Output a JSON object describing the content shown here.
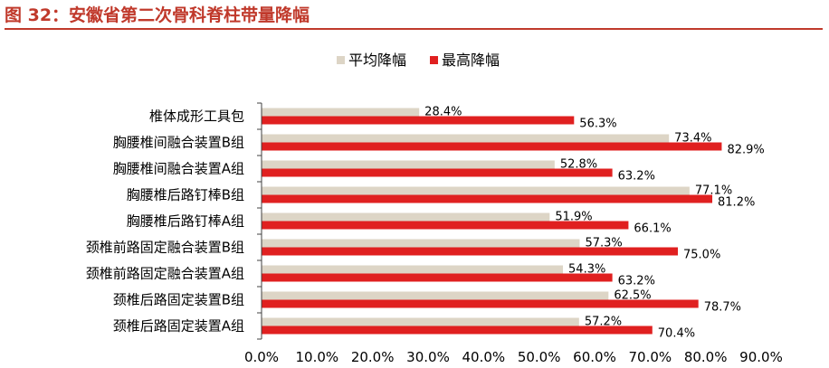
{
  "figure_title": "图 32：安徽省第二次骨科脊柱带量降幅",
  "colors": {
    "title": "#c0392b",
    "avg": "#ddd5c6",
    "max": "#e02020",
    "axis": "#404040"
  },
  "chart_data": {
    "type": "bar",
    "orientation": "horizontal",
    "title": "",
    "xlabel": "",
    "ylabel": "",
    "xlim": [
      0,
      90
    ],
    "grid": false,
    "legend_position": "top-center",
    "tick_values": [
      0,
      10,
      20,
      30,
      40,
      50,
      60,
      70,
      80,
      90
    ],
    "tick_labels": [
      "0.0%",
      "10.0%",
      "20.0%",
      "30.0%",
      "40.0%",
      "50.0%",
      "60.0%",
      "70.0%",
      "80.0%",
      "90.0%"
    ],
    "categories": [
      "椎体成形工具包",
      "胸腰椎间融合装置B组",
      "胸腰椎间融合装置A组",
      "胸腰椎后路钉棒B组",
      "胸腰椎后路钉棒A组",
      "颈椎前路固定融合装置B组",
      "颈椎前路固定融合装置A组",
      "颈椎后路固定装置B组",
      "颈椎后路固定装置A组"
    ],
    "series": [
      {
        "name": "平均降幅",
        "color": "#ddd5c6",
        "values": [
          28.4,
          73.4,
          52.8,
          77.1,
          51.9,
          57.3,
          54.3,
          62.5,
          57.2
        ],
        "labels": [
          "28.4%",
          "73.4%",
          "52.8%",
          "77.1%",
          "51.9%",
          "57.3%",
          "54.3%",
          "62.5%",
          "57.2%"
        ]
      },
      {
        "name": "最高降幅",
        "color": "#e02020",
        "values": [
          56.3,
          82.9,
          63.2,
          81.2,
          66.1,
          75.0,
          63.2,
          78.7,
          70.4
        ],
        "labels": [
          "56.3%",
          "82.9%",
          "63.2%",
          "81.2%",
          "66.1%",
          "75.0%",
          "63.2%",
          "78.7%",
          "70.4%"
        ]
      }
    ]
  }
}
